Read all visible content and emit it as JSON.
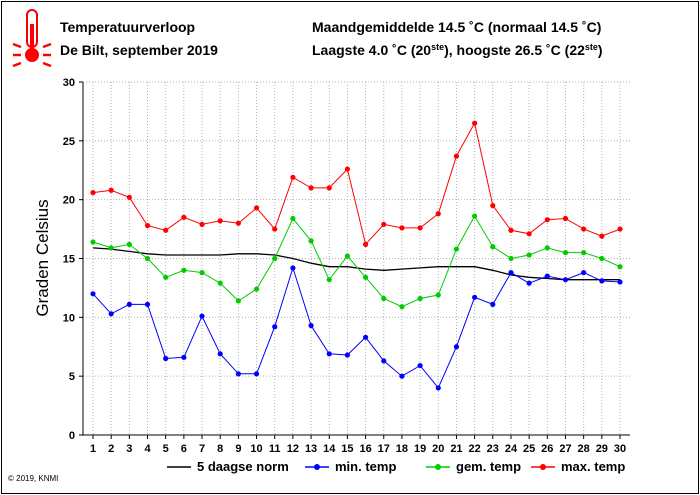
{
  "header": {
    "title_line1": "Temperatuurverloop",
    "title_line2": "De Bilt, september 2019",
    "stats_line1": "Maandgemiddelde 14.5 ˚C (normaal 14.5 ˚C)",
    "stats_line2_prefix": "Laagste 4.0 ˚C (20",
    "stats_line2_sup1": "ste",
    "stats_line2_mid": "), hoogste 26.5 ˚C (22",
    "stats_line2_sup2": "ste",
    "stats_line2_suffix": ")",
    "icon": "thermometer-icon"
  },
  "copyright": "© 2019, KNMI",
  "colors": {
    "norm": "#000000",
    "min": "#0000ff",
    "gem": "#00cc00",
    "max": "#ff0000",
    "grid": "#b0b0b0",
    "icon": "#ff0000"
  },
  "chart_data": {
    "type": "line",
    "ylabel": "Graden Celsius",
    "xlabel": "",
    "ylim": [
      0,
      30
    ],
    "yticks": [
      0,
      5,
      10,
      15,
      20,
      25,
      30
    ],
    "grid": true,
    "legend_position": "bottom",
    "x": [
      1,
      2,
      3,
      4,
      5,
      6,
      7,
      8,
      9,
      10,
      11,
      12,
      13,
      14,
      15,
      16,
      17,
      18,
      19,
      20,
      21,
      22,
      23,
      24,
      25,
      26,
      27,
      28,
      29,
      30
    ],
    "series": [
      {
        "name": "5 daagse norm",
        "key": "norm",
        "markers": false,
        "values": [
          15.9,
          15.8,
          15.6,
          15.4,
          15.3,
          15.3,
          15.3,
          15.3,
          15.4,
          15.4,
          15.3,
          15.0,
          14.6,
          14.3,
          14.3,
          14.1,
          14.0,
          14.1,
          14.2,
          14.3,
          14.3,
          14.3,
          14.0,
          13.6,
          13.4,
          13.3,
          13.2,
          13.2,
          13.2,
          13.2
        ]
      },
      {
        "name": "min. temp",
        "key": "min",
        "markers": true,
        "values": [
          12.0,
          10.3,
          11.1,
          11.1,
          6.5,
          6.6,
          10.1,
          6.9,
          5.2,
          5.2,
          9.2,
          14.2,
          9.3,
          6.9,
          6.8,
          8.3,
          6.3,
          5.0,
          5.9,
          4.0,
          7.5,
          11.7,
          11.1,
          13.8,
          12.9,
          13.5,
          13.2,
          13.8,
          13.1,
          13.0
        ]
      },
      {
        "name": "gem. temp",
        "key": "gem",
        "markers": true,
        "values": [
          16.4,
          15.9,
          16.2,
          15.0,
          13.4,
          14.0,
          13.8,
          12.9,
          11.4,
          12.4,
          15.0,
          18.4,
          16.5,
          13.2,
          15.2,
          13.4,
          11.6,
          10.9,
          11.6,
          11.9,
          15.8,
          18.6,
          16.0,
          15.0,
          15.3,
          15.9,
          15.5,
          15.5,
          15.0,
          14.3
        ]
      },
      {
        "name": "max. temp",
        "key": "max",
        "markers": true,
        "values": [
          20.6,
          20.8,
          20.2,
          17.8,
          17.4,
          18.5,
          17.9,
          18.2,
          18.0,
          19.3,
          17.5,
          21.9,
          21.0,
          21.0,
          22.6,
          16.2,
          17.9,
          17.6,
          17.6,
          18.8,
          23.7,
          26.5,
          19.5,
          17.4,
          17.1,
          18.3,
          18.4,
          17.5,
          16.9,
          17.5
        ]
      }
    ]
  }
}
